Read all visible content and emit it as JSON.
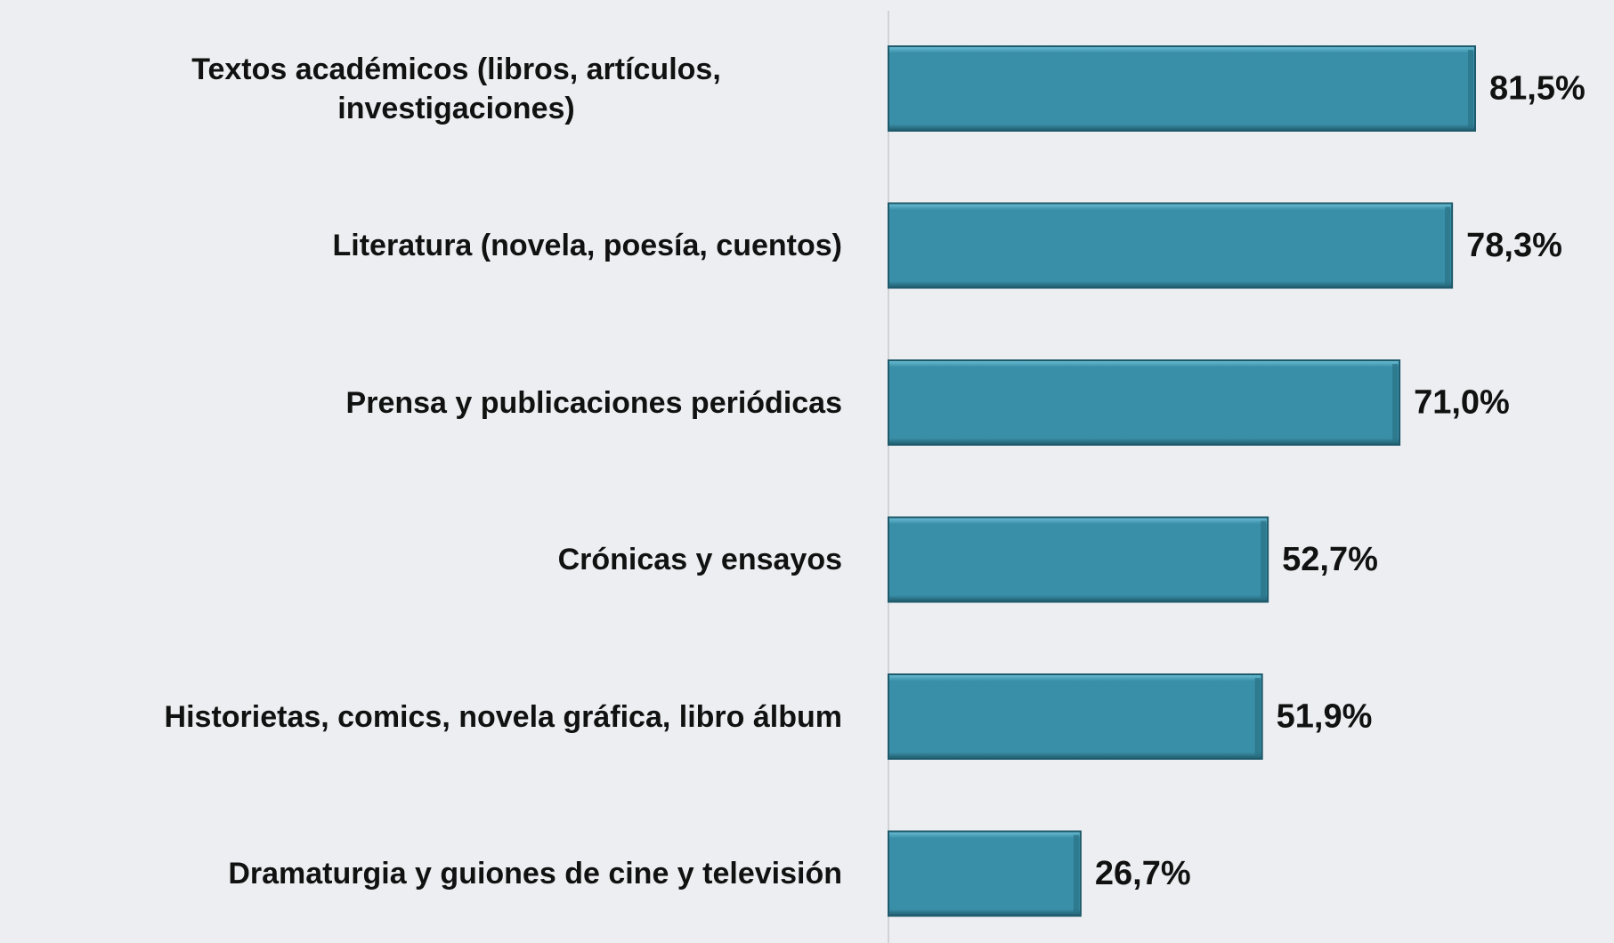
{
  "chart_data": {
    "type": "bar",
    "orientation": "horizontal",
    "categories": [
      "Textos académicos (libros, artículos, investigaciones)",
      "Literatura (novela, poesía, cuentos)",
      "Prensa y publicaciones periódicas",
      "Crónicas y ensayos",
      "Historietas, comics, novela gráfica, libro álbum",
      "Dramaturgia y guiones de cine y televisión"
    ],
    "values": [
      81.5,
      78.3,
      71.0,
      52.7,
      51.9,
      26.7
    ],
    "value_labels": [
      "81,5%",
      "78,3%",
      "71,0%",
      "52,7%",
      "51,9%",
      "26,7%"
    ],
    "color": "#3a8fa8"
  }
}
